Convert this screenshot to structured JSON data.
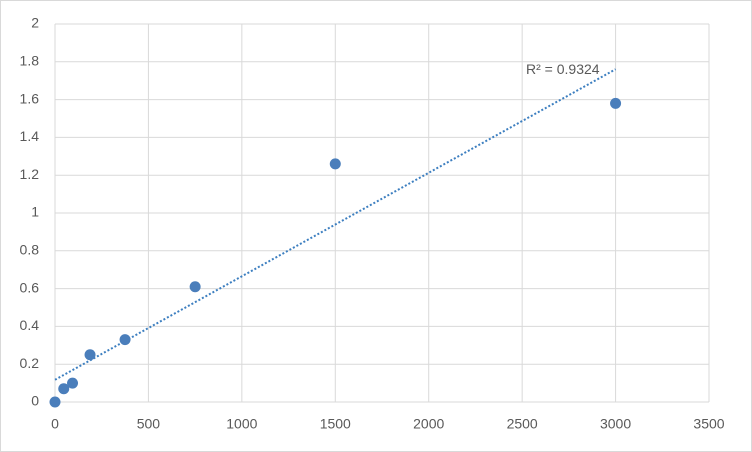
{
  "chart_data": {
    "type": "scatter",
    "series": [
      {
        "color": "#4a7ebb",
        "x": [
          0,
          46.875,
          93.75,
          187.5,
          375,
          750,
          1500,
          3000
        ],
        "values": [
          0,
          0.07,
          0.1,
          0.25,
          0.33,
          0.61,
          1.26,
          1.58
        ]
      }
    ],
    "trendline": "linear",
    "trendline_color": "#3d7fc0",
    "annotation": "R² = 0.9324",
    "xlim": [
      0,
      3500
    ],
    "xticks": [
      0,
      500,
      1000,
      1500,
      2000,
      2500,
      3000,
      3500
    ],
    "ylim": [
      0,
      2
    ],
    "yticks": [
      0,
      0.2,
      0.4,
      0.6,
      0.8,
      1,
      1.2,
      1.4,
      1.6,
      1.8,
      2
    ],
    "grid": true
  }
}
